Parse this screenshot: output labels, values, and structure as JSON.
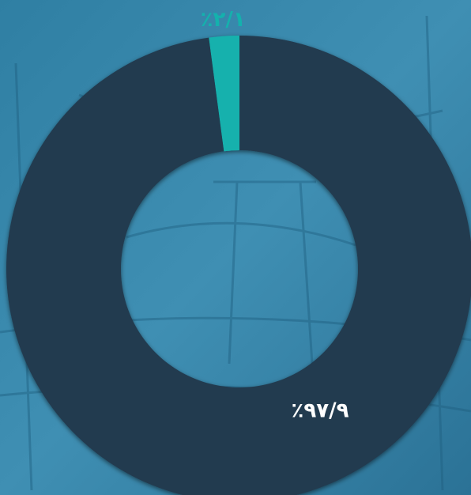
{
  "chart_data": {
    "type": "donut",
    "values": [
      2.1,
      97.9
    ],
    "value_labels": [
      "٪۲/۱",
      "٪۹۷/۹"
    ],
    "colors": [
      "#14b1ad",
      "#233b50"
    ],
    "label_colors": [
      "#14b1ad",
      "#ffffff"
    ]
  }
}
